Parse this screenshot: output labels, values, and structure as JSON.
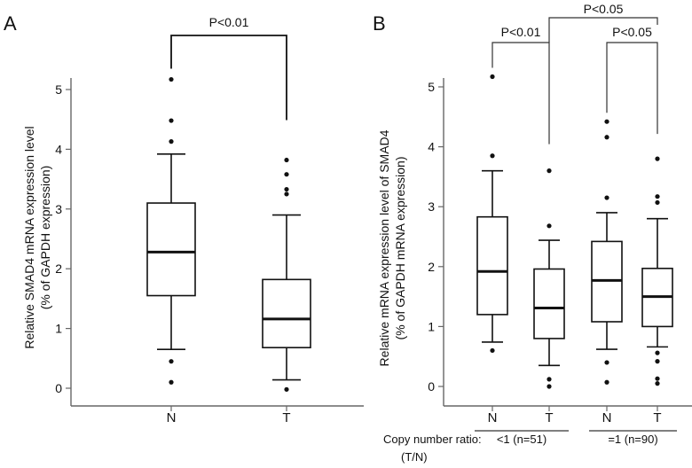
{
  "chart_data": [
    {
      "type": "box",
      "panel_label": "A",
      "ylabel": "Relative SMAD4 mRNA expression level",
      "ylabel2": "(% of GAPDH expression)",
      "ylim": [
        0,
        5
      ],
      "yticks": [
        0,
        1,
        2,
        3,
        4,
        5
      ],
      "categories": [
        "N",
        "T"
      ],
      "boxes": [
        {
          "name": "N",
          "low": 0.65,
          "q1": 1.55,
          "median": 2.28,
          "q3": 3.1,
          "high": 3.92,
          "outliers": [
            0.1,
            0.45,
            4.13,
            4.48,
            5.17
          ]
        },
        {
          "name": "T",
          "low": 0.14,
          "q1": 0.68,
          "median": 1.16,
          "q3": 1.82,
          "high": 2.9,
          "outliers": [
            -0.02,
            3.25,
            3.33,
            3.58,
            3.82
          ]
        }
      ],
      "annotations": [
        {
          "text": "P<0.01",
          "from": "N",
          "to": "T"
        }
      ]
    },
    {
      "type": "box",
      "panel_label": "B",
      "ylabel": "Relative mRNA expression level of SMAD4",
      "ylabel2": "(% of GAPDH mRNA expression)",
      "ylim": [
        0,
        5
      ],
      "yticks": [
        0,
        1,
        2,
        3,
        4,
        5
      ],
      "categories": [
        "N",
        "T",
        "N",
        "T"
      ],
      "boxes": [
        {
          "name": "N",
          "group": "<1 (n=51)",
          "low": 0.74,
          "q1": 1.2,
          "median": 1.92,
          "q3": 2.83,
          "high": 3.6,
          "outliers": [
            0.6,
            3.85,
            5.17
          ]
        },
        {
          "name": "T",
          "group": "<1 (n=51)",
          "low": 0.35,
          "q1": 0.8,
          "median": 1.31,
          "q3": 1.96,
          "high": 2.44,
          "outliers": [
            0.0,
            0.12,
            2.68,
            3.6
          ]
        },
        {
          "name": "N",
          "group": "=1 (n=90)",
          "low": 0.62,
          "q1": 1.08,
          "median": 1.77,
          "q3": 2.42,
          "high": 2.9,
          "outliers": [
            0.07,
            0.4,
            3.15,
            4.16,
            4.42
          ]
        },
        {
          "name": "T",
          "group": "=1 (n=90)",
          "low": 0.66,
          "q1": 1.0,
          "median": 1.5,
          "q3": 1.97,
          "high": 2.8,
          "outliers": [
            0.05,
            0.13,
            0.42,
            0.56,
            3.07,
            3.17,
            3.8
          ]
        }
      ],
      "annotations": [
        {
          "text": "P<0.01",
          "from": 0,
          "to": 1
        },
        {
          "text": "P<0.05",
          "from": 1,
          "to": 3
        },
        {
          "text": "P<0.05",
          "from": 2,
          "to": 3
        }
      ],
      "group_axis_label_1": "Copy number ratio:",
      "group_axis_label_2": "(T/N)",
      "groups": [
        "<1 (n=51)",
        "=1 (n=90)"
      ]
    }
  ]
}
